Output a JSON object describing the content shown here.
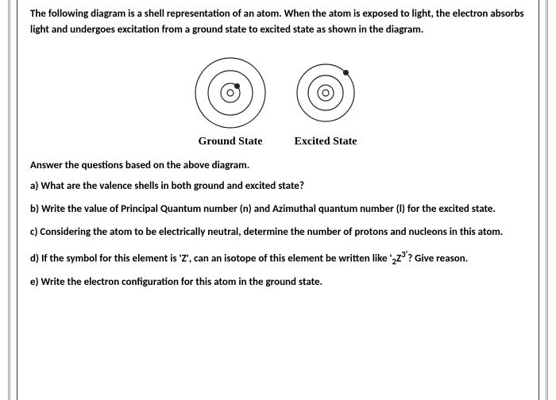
{
  "intro": "The following diagram is a shell representation of an atom. When the atom is exposed to light, the electron absorbs light and undergoes excitation from a ground state to excited state as shown in the diagram.",
  "diagram": {
    "ground": {
      "label": "Ground State",
      "shells": [
        12,
        28,
        44
      ],
      "nucleus_r": 4,
      "electron": {
        "shell_r": 12,
        "angle_deg": 45,
        "r": 3.5
      },
      "stroke": "#222222",
      "fill_bg": "#ffffff",
      "size": 100
    },
    "excited": {
      "label": "Excited State",
      "shells": [
        10,
        22,
        36
      ],
      "nucleus_r": 4,
      "electron": {
        "shell_r": 36,
        "angle_deg": 45,
        "r": 3.5
      },
      "stroke": "#222222",
      "fill_bg": "#ffffff",
      "size": 100
    }
  },
  "subhead": "Answer the questions based on the above diagram.",
  "questions": {
    "a": "a) What are the valence shells in both ground and excited state?",
    "b": "b) Write the value of Principal Quantum number (n) and Azimuthal quantum number (l) for the excited state.",
    "c": "c) Considering the atom to be electrically neutral, determine the number of protons and nucleons in this atom.",
    "d_pre": "d) If the symbol for this element is 'Z', can an isotope of this element be written like '",
    "d_sub": "2",
    "d_mid": "Z",
    "d_sup": "3'",
    "d_post": "? Give reason.",
    "e": "e) Write the electron configuration for this atom in the ground state."
  }
}
